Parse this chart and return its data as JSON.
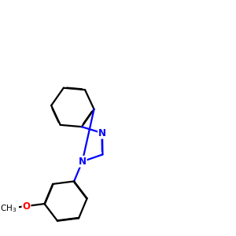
{
  "background_color": "#ffffff",
  "bond_color": "#000000",
  "N_color": "#0000ff",
  "O_color": "#ff0000",
  "line_width": 1.6,
  "dbo": 0.018,
  "figsize": [
    3.0,
    3.0
  ],
  "dpi": 100,
  "xlim": [
    0,
    10
  ],
  "ylim": [
    0,
    10
  ]
}
